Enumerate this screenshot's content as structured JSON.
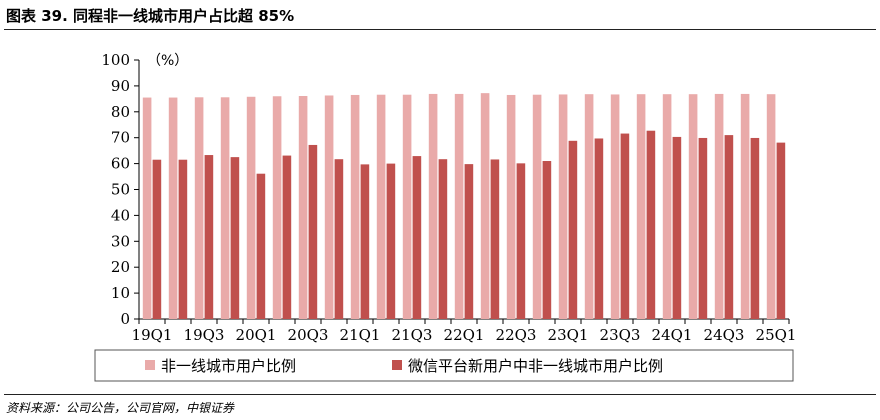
{
  "header": {
    "title": "图表 39. 同程非一线城市用户占比超 85%"
  },
  "footer": {
    "source": "资料来源：公司公告，公司官网，中银证券"
  },
  "colors": {
    "series_light": "#e9aaa9",
    "series_dark": "#c0504d"
  },
  "chart_data": {
    "type": "bar",
    "unit_label": "（%）",
    "ylim": [
      0,
      100
    ],
    "yticks": [
      0,
      10,
      20,
      30,
      40,
      50,
      60,
      70,
      80,
      90,
      100
    ],
    "grid": false,
    "legend_position": "bottom",
    "categories": [
      "19Q1",
      "19Q2",
      "19Q3",
      "19Q4",
      "20Q1",
      "20Q2",
      "20Q3",
      "20Q4",
      "21Q1",
      "21Q2",
      "21Q3",
      "21Q4",
      "22Q1",
      "22Q2",
      "22Q3",
      "22Q4",
      "23Q1",
      "23Q2",
      "23Q3",
      "23Q4",
      "24Q1",
      "24Q2",
      "24Q3",
      "24Q4",
      "25Q1"
    ],
    "x_tick_labels": [
      "19Q1",
      "19Q3",
      "20Q1",
      "20Q3",
      "21Q1",
      "21Q3",
      "22Q1",
      "22Q3",
      "23Q1",
      "23Q3",
      "24Q1",
      "24Q3",
      "25Q1"
    ],
    "series": [
      {
        "name": "非一线城市用户比例",
        "color": "#e9aaa9",
        "values": [
          85.5,
          85.5,
          85.6,
          85.6,
          85.8,
          86,
          86.1,
          86.3,
          86.5,
          86.6,
          86.6,
          86.9,
          86.9,
          87.2,
          86.5,
          86.6,
          86.7,
          86.8,
          86.7,
          86.8,
          86.8,
          86.8,
          86.9,
          86.9,
          86.8
        ]
      },
      {
        "name": "微信平台新用户中非一线城市用户比例",
        "color": "#c0504d",
        "values": [
          61.5,
          61.5,
          63.3,
          62.5,
          56.1,
          63.1,
          67.2,
          61.7,
          59.7,
          60,
          62.9,
          61.7,
          59.8,
          61.6,
          60.1,
          61,
          68.8,
          69.7,
          71.6,
          72.7,
          70.3,
          69.9,
          71,
          69.9,
          68.1
        ]
      }
    ]
  }
}
